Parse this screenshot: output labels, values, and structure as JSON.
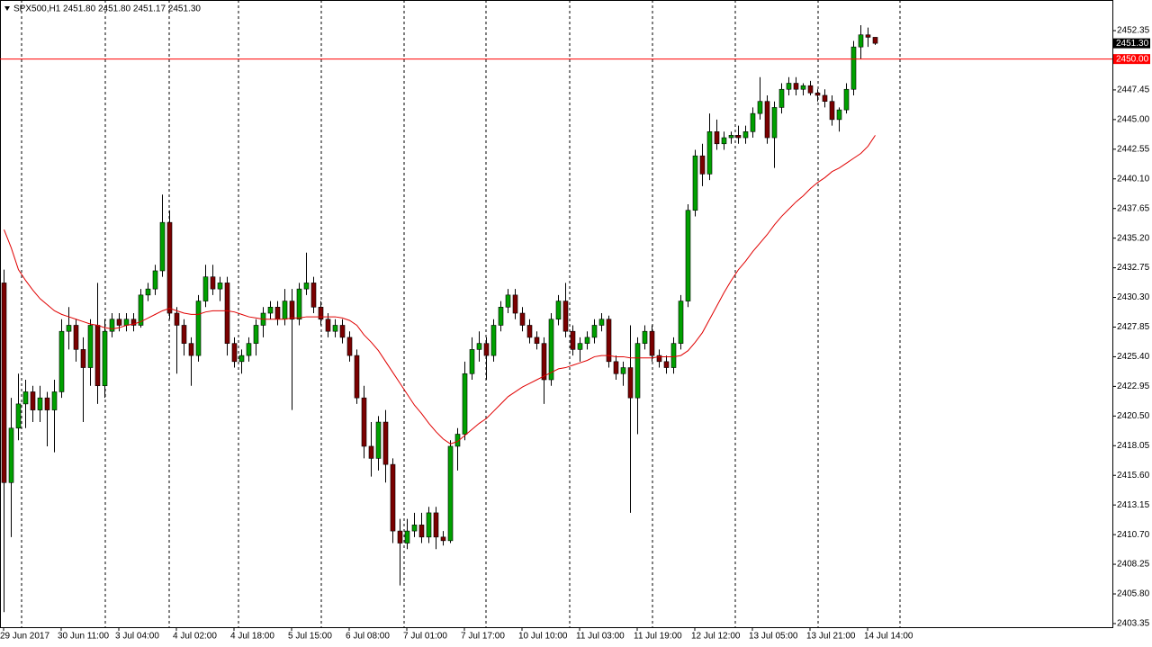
{
  "chart_data": {
    "type": "candlestick",
    "title": "SPX500,H1  2451.80 2451.80 2451.17 2451.30",
    "categories": [
      "29 Jun 2017",
      null,
      null,
      null,
      null,
      null,
      null,
      null,
      "30 Jun 11:00",
      null,
      null,
      null,
      null,
      null,
      null,
      null,
      "3 Jul 04:00",
      null,
      null,
      null,
      null,
      null,
      null,
      null,
      "4 Jul 02:00",
      null,
      null,
      null,
      null,
      null,
      null,
      null,
      "4 Jul 18:00",
      null,
      null,
      null,
      null,
      null,
      null,
      null,
      "5 Jul 15:00",
      null,
      null,
      null,
      null,
      null,
      null,
      null,
      "6 Jul 08:00",
      null,
      null,
      null,
      null,
      null,
      null,
      null,
      "7 Jul 01:00",
      null,
      null,
      null,
      null,
      null,
      null,
      null,
      "7 Jul 17:00",
      null,
      null,
      null,
      null,
      null,
      null,
      null,
      "10 Jul 10:00",
      null,
      null,
      null,
      null,
      null,
      null,
      null,
      "11 Jul 03:00",
      null,
      null,
      null,
      null,
      null,
      null,
      null,
      "11 Jul 19:00",
      null,
      null,
      null,
      null,
      null,
      null,
      null,
      "12 Jul 12:00",
      null,
      null,
      null,
      null,
      null,
      null,
      null,
      "13 Jul 05:00",
      null,
      null,
      null,
      null,
      null,
      null,
      null,
      "13 Jul 21:00",
      null,
      null,
      null,
      null,
      null,
      null,
      null,
      "14 Jul 14:00",
      null
    ],
    "open": [
      2431.5,
      2415.0,
      2419.5,
      2421.5,
      2422.5,
      2421.0,
      2422.0,
      2421.0,
      2422.5,
      2427.5,
      2428.0,
      2426.0,
      2424.5,
      2428.0,
      2423.0,
      2427.5,
      2428.5,
      2428.0,
      2428.5,
      2428.0,
      2430.5,
      2431.0,
      2432.5,
      2436.5,
      2429.0,
      2428.0,
      2426.5,
      2425.5,
      2430.0,
      2432.0,
      2431.0,
      2431.5,
      2426.5,
      2425.0,
      2425.5,
      2426.5,
      2428.0,
      2429.0,
      2429.5,
      2428.5,
      2430.0,
      2428.5,
      2431.0,
      2431.5,
      2429.5,
      2428.5,
      2427.5,
      2428.0,
      2427.0,
      2425.5,
      2422.0,
      2418.0,
      2417.0,
      2420.0,
      2416.5,
      2411.0,
      2410.0,
      2411.0,
      2411.5,
      2410.5,
      2412.5,
      2410.5,
      2410.2,
      2418.0,
      2419.0,
      2424.0,
      2426.0,
      2426.5,
      2425.5,
      2428.0,
      2429.5,
      2430.5,
      2429.0,
      2428.0,
      2427.0,
      2426.5,
      2423.5,
      2428.5,
      2430.0,
      2427.5,
      2426.0,
      2426.5,
      2427.0,
      2428.0,
      2428.5,
      2425.0,
      2424.0,
      2424.5,
      2422.0,
      2426.5,
      2427.5,
      2425.5,
      2425.0,
      2424.5,
      2426.5,
      2430.0,
      2437.5,
      2442.0,
      2440.5,
      2444.0,
      2443.0,
      2443.5,
      2443.7,
      2443.5,
      2444.0,
      2445.5,
      2446.5,
      2443.5,
      2446.0,
      2447.5,
      2448.0,
      2447.5,
      2447.8,
      2447.2,
      2447.0,
      2446.5,
      2445.0,
      2445.8,
      2447.5,
      2451.0,
      2452.0,
      2451.8
    ],
    "high": [
      2432.6,
      2422.0,
      2424.0,
      2423.5,
      2423.0,
      2423.0,
      2422.5,
      2423.5,
      2428.5,
      2429.5,
      2428.5,
      2427.0,
      2428.5,
      2431.5,
      2428.5,
      2429.0,
      2429.0,
      2429.0,
      2429.0,
      2431.0,
      2431.5,
      2433.0,
      2438.8,
      2437.5,
      2429.5,
      2428.5,
      2427.0,
      2430.5,
      2433.0,
      2433.0,
      2432.0,
      2432.0,
      2427.0,
      2426.0,
      2427.0,
      2428.5,
      2429.5,
      2430.0,
      2430.0,
      2431.0,
      2431.0,
      2431.5,
      2434.0,
      2432.0,
      2430.0,
      2429.0,
      2428.5,
      2428.5,
      2427.5,
      2426.0,
      2423.0,
      2420.0,
      2420.5,
      2421.0,
      2417.0,
      2412.0,
      2412.0,
      2412.5,
      2412.5,
      2413.0,
      2413.0,
      2411.0,
      2418.5,
      2419.5,
      2425.0,
      2427.0,
      2427.5,
      2427.0,
      2428.5,
      2430.0,
      2431.0,
      2431.0,
      2429.5,
      2428.5,
      2427.5,
      2427.0,
      2429.0,
      2430.5,
      2431.5,
      2428.0,
      2427.0,
      2427.5,
      2428.5,
      2429.0,
      2428.8,
      2425.5,
      2425.0,
      2428.0,
      2427.0,
      2428.0,
      2428.0,
      2426.0,
      2425.5,
      2427.0,
      2430.5,
      2438.0,
      2442.5,
      2443.0,
      2445.5,
      2445.0,
      2444.0,
      2444.0,
      2444.5,
      2444.5,
      2446.0,
      2448.5,
      2447.0,
      2446.5,
      2448.0,
      2448.5,
      2448.5,
      2448.0,
      2448.2,
      2447.5,
      2447.5,
      2447.0,
      2446.0,
      2448.0,
      2451.5,
      2452.8,
      2452.6,
      2451.8
    ],
    "low": [
      2404.3,
      2410.5,
      2418.5,
      2419.5,
      2420.0,
      2420.0,
      2418.0,
      2417.5,
      2422.0,
      2426.0,
      2425.0,
      2420.0,
      2423.0,
      2421.5,
      2422.0,
      2427.0,
      2427.5,
      2427.5,
      2427.5,
      2427.8,
      2430.0,
      2430.5,
      2432.0,
      2428.5,
      2424.0,
      2425.5,
      2423.0,
      2425.0,
      2429.5,
      2430.5,
      2430.0,
      2425.5,
      2424.5,
      2424.0,
      2425.0,
      2425.5,
      2427.0,
      2428.5,
      2428.0,
      2428.0,
      2421.0,
      2428.0,
      2430.5,
      2429.0,
      2428.0,
      2427.0,
      2427.0,
      2426.5,
      2425.0,
      2421.5,
      2417.0,
      2415.5,
      2416.0,
      2415.0,
      2410.0,
      2406.5,
      2409.5,
      2410.5,
      2410.0,
      2410.0,
      2409.5,
      2409.8,
      2410.0,
      2416.0,
      2418.5,
      2423.5,
      2425.0,
      2423.5,
      2425.0,
      2427.5,
      2429.0,
      2428.5,
      2427.5,
      2426.5,
      2426.0,
      2421.5,
      2423.0,
      2428.0,
      2427.0,
      2425.5,
      2425.0,
      2426.0,
      2426.5,
      2427.5,
      2424.5,
      2423.5,
      2423.0,
      2412.5,
      2419.0,
      2426.0,
      2425.0,
      2424.5,
      2424.0,
      2424.0,
      2426.0,
      2429.5,
      2437.0,
      2439.5,
      2440.0,
      2442.5,
      2442.5,
      2443.0,
      2443.0,
      2443.0,
      2443.5,
      2445.0,
      2443.0,
      2441.0,
      2445.5,
      2447.0,
      2447.0,
      2447.0,
      2447.0,
      2446.5,
      2446.0,
      2444.5,
      2444.0,
      2445.5,
      2447.0,
      2450.0,
      2451.0,
      2451.17
    ],
    "close": [
      2415.0,
      2419.5,
      2421.5,
      2422.5,
      2421.0,
      2422.0,
      2421.0,
      2422.5,
      2427.5,
      2428.0,
      2426.0,
      2424.5,
      2428.0,
      2423.0,
      2427.5,
      2428.5,
      2428.0,
      2428.5,
      2428.0,
      2430.5,
      2431.0,
      2432.5,
      2436.5,
      2429.0,
      2428.0,
      2426.5,
      2425.5,
      2430.0,
      2432.0,
      2431.0,
      2431.5,
      2426.5,
      2425.0,
      2425.5,
      2426.5,
      2428.0,
      2429.0,
      2429.5,
      2428.5,
      2430.0,
      2428.5,
      2431.0,
      2431.5,
      2429.5,
      2428.5,
      2427.5,
      2428.0,
      2427.0,
      2425.5,
      2422.0,
      2418.0,
      2417.0,
      2420.0,
      2416.5,
      2411.0,
      2410.0,
      2411.0,
      2411.5,
      2410.5,
      2412.5,
      2410.5,
      2410.2,
      2418.0,
      2419.0,
      2424.0,
      2426.0,
      2426.5,
      2425.5,
      2428.0,
      2429.5,
      2430.5,
      2429.0,
      2428.0,
      2427.0,
      2426.5,
      2423.5,
      2428.5,
      2430.0,
      2427.5,
      2426.0,
      2426.5,
      2427.0,
      2428.0,
      2428.5,
      2425.0,
      2424.0,
      2424.5,
      2422.0,
      2426.5,
      2427.5,
      2425.5,
      2425.0,
      2424.5,
      2426.5,
      2430.0,
      2437.5,
      2442.0,
      2440.5,
      2444.0,
      2443.0,
      2443.5,
      2443.7,
      2443.5,
      2444.0,
      2445.5,
      2446.5,
      2443.5,
      2446.0,
      2447.5,
      2448.0,
      2447.5,
      2447.8,
      2447.2,
      2447.0,
      2446.5,
      2445.0,
      2445.8,
      2447.5,
      2451.0,
      2452.0,
      2451.8,
      2451.3
    ],
    "ma": [
      2435.9,
      2434.4,
      2432.6,
      2431.7,
      2430.9,
      2430.2,
      2429.7,
      2429.2,
      2428.9,
      2428.7,
      2428.5,
      2428.3,
      2428.1,
      2428.0,
      2427.8,
      2427.7,
      2427.8,
      2428.0,
      2428.1,
      2428.3,
      2428.6,
      2428.9,
      2429.2,
      2429.4,
      2429.2,
      2429.0,
      2428.9,
      2428.9,
      2429.1,
      2429.2,
      2429.2,
      2429.2,
      2429.1,
      2428.9,
      2428.7,
      2428.6,
      2428.5,
      2428.5,
      2428.5,
      2428.5,
      2428.6,
      2428.6,
      2428.7,
      2428.7,
      2428.7,
      2428.7,
      2428.7,
      2428.6,
      2428.4,
      2428.0,
      2427.2,
      2426.6,
      2425.9,
      2425.0,
      2424.1,
      2423.2,
      2422.3,
      2421.4,
      2420.7,
      2419.9,
      2419.2,
      2418.6,
      2418.2,
      2418.4,
      2418.9,
      2419.4,
      2419.9,
      2420.3,
      2420.9,
      2421.5,
      2422.1,
      2422.5,
      2422.9,
      2423.2,
      2423.5,
      2423.8,
      2424.1,
      2424.4,
      2424.5,
      2424.7,
      2424.9,
      2425.1,
      2425.4,
      2425.5,
      2425.5,
      2425.4,
      2425.4,
      2425.3,
      2425.3,
      2425.3,
      2425.3,
      2425.4,
      2425.4,
      2425.4,
      2425.5,
      2425.9,
      2426.6,
      2427.4,
      2428.5,
      2429.6,
      2430.7,
      2431.7,
      2432.6,
      2433.3,
      2434.1,
      2434.8,
      2435.5,
      2436.3,
      2437.0,
      2437.6,
      2438.2,
      2438.7,
      2439.3,
      2439.8,
      2440.2,
      2440.7,
      2441.0,
      2441.4,
      2441.8,
      2442.2,
      2442.8,
      2443.7
    ],
    "up_color": "#00a000",
    "down_color": "#7a0000",
    "ma_color": "#e00000",
    "level": {
      "value": 2450,
      "label": "2450.00",
      "color": "#ff0000"
    },
    "last_price": {
      "value": 2451.3,
      "label": "2451.30"
    },
    "ylim": [
      2403.05,
      2454.88
    ],
    "yticks": [
      2452.35,
      2447.45,
      {
        "value": 2445,
        "label": "2445.00"
      },
      2442.55,
      {
        "value": 2440.1,
        "label": "2440.10"
      },
      2437.65,
      {
        "value": 2435.2,
        "label": "2435.20"
      },
      2432.75,
      {
        "value": 2430.3,
        "label": "2430.30"
      },
      2427.85,
      {
        "value": 2425.4,
        "label": "2425.40"
      },
      2422.95,
      {
        "value": 2420.5,
        "label": "2420.50"
      },
      2418.05,
      {
        "value": 2415.6,
        "label": "2415.60"
      },
      2413.15,
      {
        "value": 2410.7,
        "label": "2410.70"
      },
      2408.25,
      {
        "value": 2405.8,
        "label": "2405.80"
      },
      2403.35
    ]
  }
}
